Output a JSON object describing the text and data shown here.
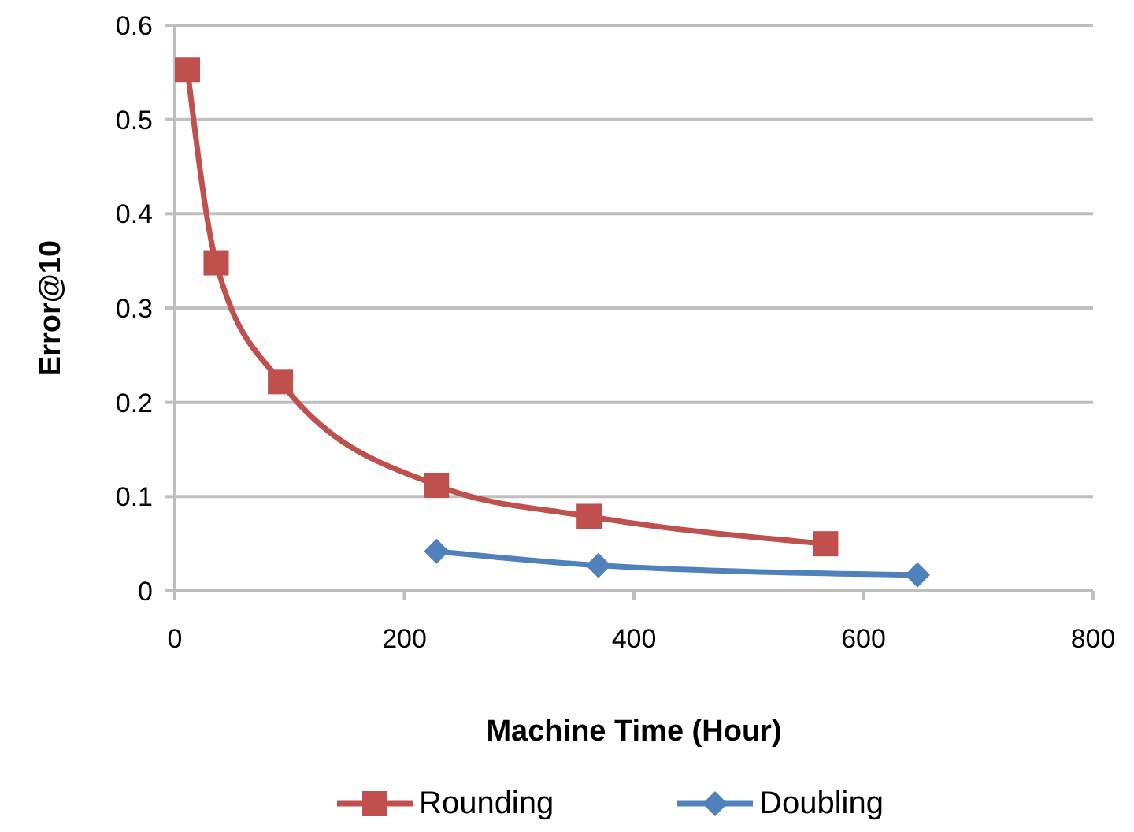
{
  "chart_data": {
    "type": "line",
    "xlabel": "Machine Time (Hour)",
    "ylabel": "Error@10",
    "xlim": [
      0,
      800
    ],
    "xticks": [
      0,
      200,
      400,
      600,
      800
    ],
    "ylim": [
      0,
      0.6
    ],
    "yticks": [
      0,
      0.1,
      0.2,
      0.3,
      0.4,
      0.5,
      0.6
    ],
    "grid": "y",
    "legend": "bottom",
    "series": [
      {
        "name": "Rounding",
        "color": "#c0504d",
        "marker": "square",
        "x": [
          11,
          36,
          92,
          228,
          361,
          567
        ],
        "values": [
          0.553,
          0.348,
          0.222,
          0.112,
          0.079,
          0.05
        ]
      },
      {
        "name": "Doubling",
        "color": "#4f81bd",
        "marker": "diamond",
        "x": [
          228,
          369,
          647
        ],
        "values": [
          0.042,
          0.027,
          0.017
        ]
      }
    ]
  }
}
